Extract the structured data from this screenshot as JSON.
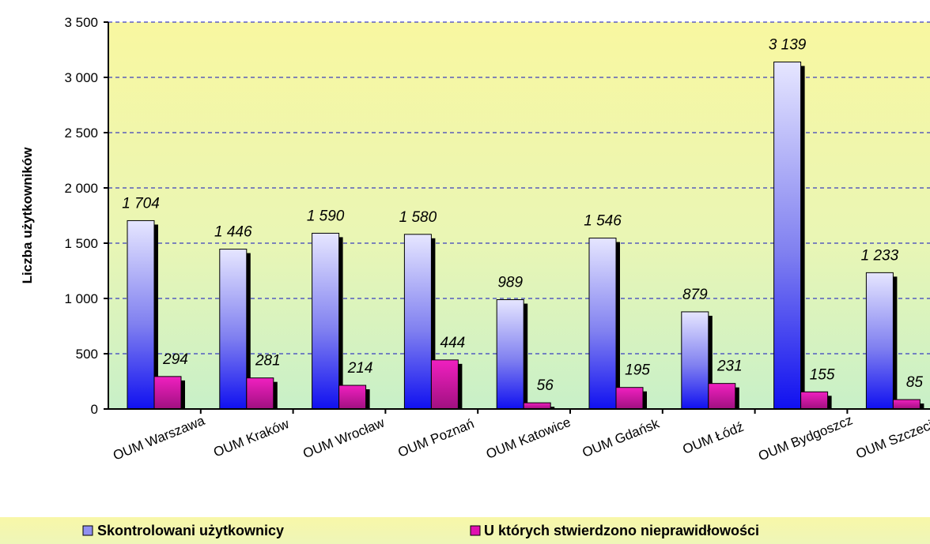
{
  "chart_data": {
    "type": "bar",
    "ylabel": "Liczba użytkowników",
    "ylim": [
      0,
      3500
    ],
    "ytick_step": 500,
    "ytick_labels": [
      "0",
      "500",
      "1 000",
      "1 500",
      "2 000",
      "2 500",
      "3 000",
      "3 500"
    ],
    "grid": "horizontal dashed",
    "legend_placement": "bottom",
    "categories": [
      "OUM Warszawa",
      "OUM Kraków",
      "OUM Wrocław",
      "OUM Poznań",
      "OUM Katowice",
      "OUM Gdańsk",
      "OUM Łódź",
      "OUM Bydgoszcz",
      "OUM Szczecin"
    ],
    "series": [
      {
        "name": "Skontrolowani użytkownicy",
        "values": [
          1704,
          1446,
          1590,
          1580,
          989,
          1546,
          879,
          3139,
          1233
        ],
        "labels": [
          "1 704",
          "1 446",
          "1 590",
          "1 580",
          "989",
          "1 546",
          "879",
          "3 139",
          "1 233"
        ],
        "color": "#6060e0"
      },
      {
        "name": "U których stwierdzono nieprawidłowości",
        "values": [
          294,
          281,
          214,
          444,
          56,
          195,
          231,
          155,
          85
        ],
        "labels": [
          "294",
          "281",
          "214",
          "444",
          "56",
          "195",
          "231",
          "155",
          "85"
        ],
        "color": "#e010b0"
      }
    ]
  }
}
